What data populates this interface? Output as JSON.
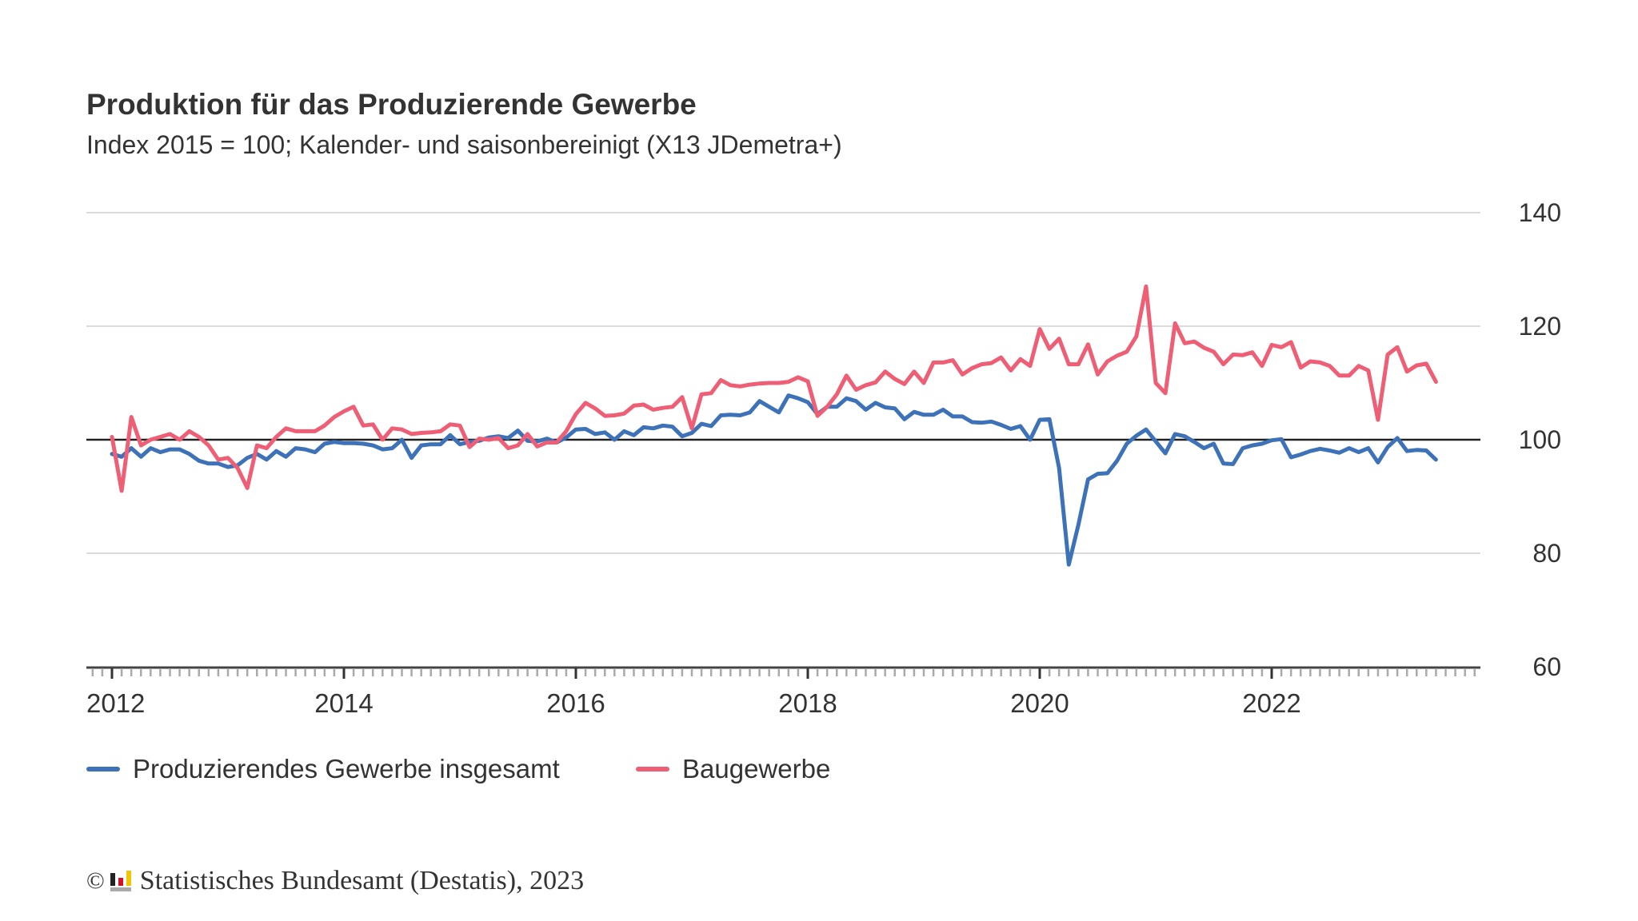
{
  "chart_data": {
    "type": "line",
    "title": "Produktion für das Produzierende Gewerbe",
    "subtitle": "Index 2015 = 100; Kalender- und saisonbereinigt (X13 JDemetra+)",
    "xlabel": "",
    "ylabel": "",
    "x_tick_labels": [
      "2012",
      "2014",
      "2016",
      "2018",
      "2020",
      "2022"
    ],
    "y_tick_labels": [
      "140",
      "120",
      "100",
      "80",
      "60"
    ],
    "ylim": [
      60,
      140
    ],
    "reference_line": 100,
    "grid": true,
    "legend_position": "bottom-left",
    "x_start": "2012-01",
    "frequency": "monthly",
    "series": [
      {
        "name": "Produzierendes Gewerbe insgesamt",
        "color": "#3d72b8",
        "values": [
          97.5,
          97,
          98.5,
          97,
          98.5,
          97.8,
          98.3,
          98.3,
          97.5,
          96.3,
          95.8,
          95.8,
          95.2,
          95.5,
          96.8,
          97.5,
          96.5,
          98,
          97,
          98.5,
          98.3,
          97.8,
          99.3,
          99.6,
          99.4,
          99.4,
          99.3,
          99,
          98.3,
          98.5,
          100,
          96.8,
          99,
          99.2,
          99.2,
          100.8,
          99.2,
          99.6,
          99.8,
          100.4,
          100.6,
          100.3,
          101.6,
          99.8,
          99.7,
          100.2,
          99.5,
          100.4,
          101.8,
          101.9,
          101,
          101.3,
          100,
          101.5,
          100.8,
          102.2,
          102,
          102.5,
          102.3,
          100.6,
          101.2,
          102.8,
          102.4,
          104.3,
          104.4,
          104.3,
          104.8,
          106.8,
          105.8,
          104.8,
          107.8,
          107.3,
          106.6,
          104.5,
          105.8,
          105.8,
          107.3,
          106.8,
          105.3,
          106.5,
          105.7,
          105.5,
          103.6,
          104.9,
          104.4,
          104.4,
          105.3,
          104.1,
          104.1,
          103.1,
          103,
          103.2,
          102.6,
          101.9,
          102.4,
          100,
          103.5,
          103.6,
          95,
          78,
          85,
          93,
          94,
          94.1,
          96.3,
          99.3,
          100.7,
          101.8,
          99.7,
          97.6,
          101,
          100.6,
          99.6,
          98.5,
          99.3,
          95.8,
          95.7,
          98.5,
          99,
          99.3,
          99.9,
          100.1,
          96.9,
          97.4,
          98,
          98.4,
          98.1,
          97.7,
          98.5,
          97.8,
          98.5,
          96,
          98.7,
          100.3,
          98,
          98.2,
          98.1,
          96.5
        ]
      },
      {
        "name": "Baugewerbe",
        "color": "#ee5f75",
        "values": [
          100.5,
          91,
          104,
          99,
          100,
          100.5,
          101,
          100,
          101.5,
          100.5,
          99,
          96.5,
          96.8,
          95,
          91.5,
          99,
          98.5,
          100.5,
          102,
          101.5,
          101.5,
          101.5,
          102.5,
          104,
          105,
          105.8,
          102.5,
          102.7,
          100,
          102,
          101.8,
          101,
          101.2,
          101.3,
          101.5,
          102.7,
          102.5,
          98.7,
          100.2,
          100,
          100.3,
          98.5,
          99,
          101,
          98.8,
          99.5,
          99.5,
          101.5,
          104.5,
          106.5,
          105.5,
          104.2,
          104.3,
          104.6,
          106,
          106.2,
          105.3,
          105.6,
          105.8,
          107.5,
          102,
          108,
          108.2,
          110.5,
          109.6,
          109.4,
          109.7,
          109.9,
          110,
          110,
          110.2,
          111,
          110.3,
          104.2,
          105.8,
          108,
          111.3,
          108.8,
          109.6,
          110.1,
          112,
          110.7,
          109.8,
          112,
          110,
          113.6,
          113.6,
          114,
          111.5,
          112.6,
          113.3,
          113.5,
          114.5,
          112.2,
          114.2,
          113,
          119.5,
          116,
          117.8,
          113.3,
          113.3,
          116.8,
          111.5,
          113.8,
          114.8,
          115.5,
          118.2,
          127,
          110,
          108.2,
          120.5,
          117,
          117.3,
          116.2,
          115.5,
          113.3,
          115,
          114.9,
          115.4,
          113,
          116.7,
          116.3,
          117.2,
          112.7,
          113.8,
          113.6,
          113,
          111.3,
          111.3,
          113,
          112.2,
          103.5,
          115,
          116.3,
          112,
          113.1,
          113.4,
          110.2
        ]
      }
    ]
  },
  "footer": {
    "copyright_symbol": "©",
    "source": "Statistisches Bundesamt (Destatis), 2023",
    "logo_icon": "destatis-logo"
  }
}
